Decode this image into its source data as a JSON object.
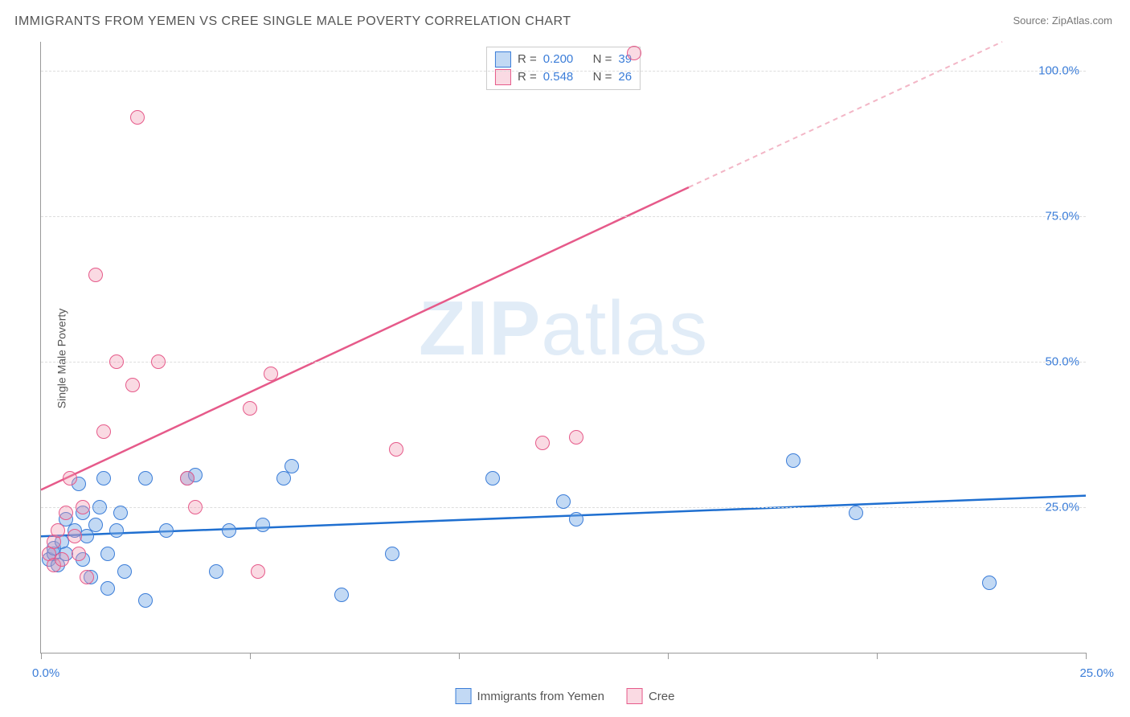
{
  "title": "IMMIGRANTS FROM YEMEN VS CREE SINGLE MALE POVERTY CORRELATION CHART",
  "source": "Source: ZipAtlas.com",
  "ylabel": "Single Male Poverty",
  "watermark_bold": "ZIP",
  "watermark_rest": "atlas",
  "chart": {
    "type": "scatter",
    "background_color": "#ffffff",
    "grid_color": "#dddddd",
    "axis_color": "#999999",
    "xlim": [
      0,
      25
    ],
    "ylim": [
      0,
      105
    ],
    "xticks": [
      0,
      5,
      10,
      15,
      20,
      25
    ],
    "xlabels": [
      "0.0%",
      "",
      "",
      "",
      "",
      "25.0%"
    ],
    "yticks": [
      25,
      50,
      75,
      100
    ],
    "ylabels": [
      "25.0%",
      "50.0%",
      "75.0%",
      "100.0%"
    ],
    "tick_label_color": "#3b7dd8",
    "marker_radius": 9,
    "series": [
      {
        "name": "Immigrants from Yemen",
        "color_fill": "rgba(120,170,230,0.45)",
        "color_stroke": "#3b7dd8",
        "R": "0.200",
        "N": "39",
        "regression": {
          "x1": 0,
          "y1": 20,
          "x2": 25,
          "y2": 27,
          "stroke": "#1f6fd0",
          "width": 2.5,
          "dash": false
        },
        "points": [
          [
            0.2,
            16
          ],
          [
            0.3,
            17
          ],
          [
            0.3,
            18
          ],
          [
            0.4,
            15
          ],
          [
            0.5,
            19
          ],
          [
            0.6,
            23
          ],
          [
            0.6,
            17
          ],
          [
            0.8,
            21
          ],
          [
            0.9,
            29
          ],
          [
            1.0,
            24
          ],
          [
            1.0,
            16
          ],
          [
            1.1,
            20
          ],
          [
            1.2,
            13
          ],
          [
            1.3,
            22
          ],
          [
            1.4,
            25
          ],
          [
            1.5,
            30
          ],
          [
            1.6,
            17
          ],
          [
            1.6,
            11
          ],
          [
            1.8,
            21
          ],
          [
            1.9,
            24
          ],
          [
            2.0,
            14
          ],
          [
            2.5,
            9
          ],
          [
            2.5,
            30
          ],
          [
            3.0,
            21
          ],
          [
            3.5,
            30
          ],
          [
            3.7,
            30.5
          ],
          [
            4.2,
            14
          ],
          [
            4.5,
            21
          ],
          [
            5.3,
            22
          ],
          [
            5.8,
            30
          ],
          [
            6.0,
            32
          ],
          [
            7.2,
            10
          ],
          [
            8.4,
            17
          ],
          [
            10.8,
            30
          ],
          [
            12.5,
            26
          ],
          [
            12.8,
            23
          ],
          [
            18.0,
            33
          ],
          [
            19.5,
            24
          ],
          [
            22.7,
            12
          ]
        ]
      },
      {
        "name": "Cree",
        "color_fill": "rgba(240,150,175,0.35)",
        "color_stroke": "#e65a8a",
        "R": "0.548",
        "N": "26",
        "regression": {
          "x1": 0,
          "y1": 28,
          "x2": 15.5,
          "y2": 80,
          "stroke": "#e65a8a",
          "width": 2.5,
          "dash": false
        },
        "regression_ext": {
          "x1": 15.5,
          "y1": 80,
          "x2": 23,
          "y2": 105,
          "stroke": "#f3b6c6",
          "width": 2,
          "dash": true
        },
        "points": [
          [
            0.2,
            17
          ],
          [
            0.3,
            15
          ],
          [
            0.3,
            19
          ],
          [
            0.4,
            21
          ],
          [
            0.5,
            16
          ],
          [
            0.6,
            24
          ],
          [
            0.7,
            30
          ],
          [
            0.8,
            20
          ],
          [
            0.9,
            17
          ],
          [
            1.0,
            25
          ],
          [
            1.1,
            13
          ],
          [
            1.3,
            65
          ],
          [
            1.5,
            38
          ],
          [
            1.8,
            50
          ],
          [
            2.2,
            46
          ],
          [
            2.3,
            92
          ],
          [
            2.8,
            50
          ],
          [
            3.5,
            30
          ],
          [
            3.7,
            25
          ],
          [
            5.0,
            42
          ],
          [
            5.5,
            48
          ],
          [
            5.2,
            14
          ],
          [
            8.5,
            35
          ],
          [
            12.0,
            36
          ],
          [
            12.8,
            37
          ],
          [
            14.2,
            103
          ]
        ]
      }
    ]
  },
  "legend_top": {
    "letters": {
      "R": "R =",
      "N": "N ="
    }
  },
  "legend_bottom": {
    "series1": "Immigrants from Yemen",
    "series2": "Cree"
  }
}
